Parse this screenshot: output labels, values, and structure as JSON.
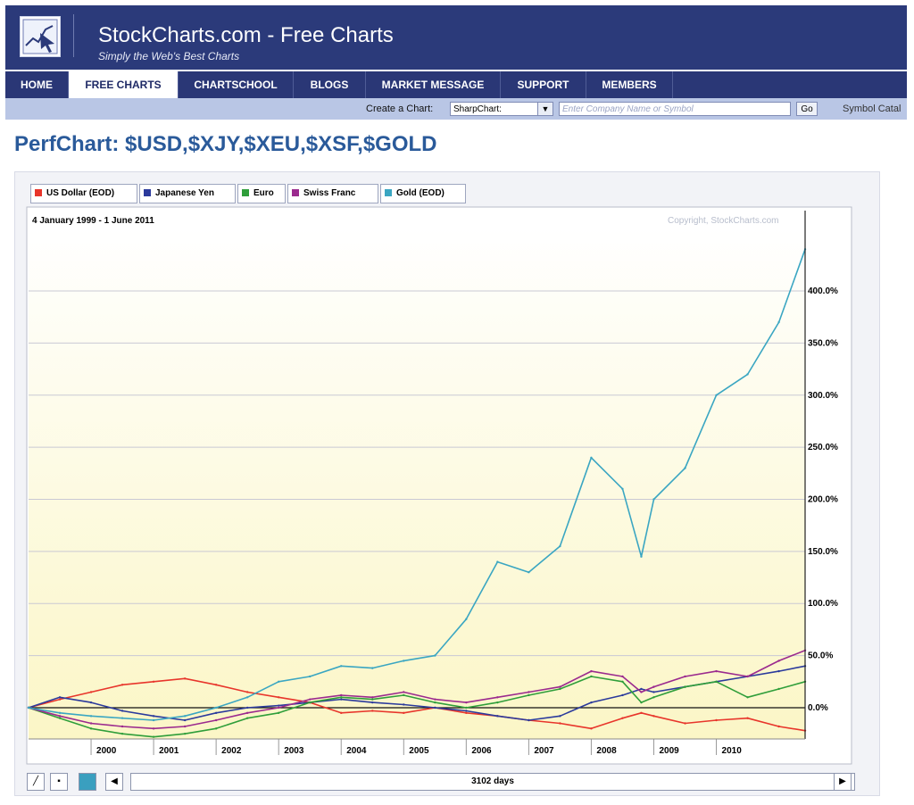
{
  "header": {
    "title": "StockCharts.com - Free Charts",
    "tagline": "Simply the Web's Best Charts"
  },
  "nav": {
    "items": [
      {
        "label": "HOME"
      },
      {
        "label": "FREE CHARTS",
        "active": true
      },
      {
        "label": "CHARTSCHOOL"
      },
      {
        "label": "BLOGS"
      },
      {
        "label": "MARKET MESSAGE"
      },
      {
        "label": "SUPPORT"
      },
      {
        "label": "MEMBERS"
      }
    ]
  },
  "create_chart": {
    "label": "Create a Chart:",
    "select_value": "SharpChart:",
    "input_placeholder": "Enter Company Name or Symbol",
    "go_label": "Go",
    "catalog_label": "Symbol Catal"
  },
  "page": {
    "title": "PerfChart: $USD,$XJY,$XEU,$XSF,$GOLD"
  },
  "legend": [
    {
      "label": "US Dollar (EOD)",
      "color": "#e8352b"
    },
    {
      "label": "Japanese Yen",
      "color": "#2b3a9c"
    },
    {
      "label": "Euro",
      "color": "#2f9e3a"
    },
    {
      "label": "Swiss Franc",
      "color": "#9b2a8e"
    },
    {
      "label": "Gold (EOD)",
      "color": "#3aa6c2"
    }
  ],
  "chart_data": {
    "type": "line",
    "date_range": "4 January 1999 - 1 June 2011",
    "copyright": "Copyright, StockCharts.com",
    "x": [
      1999.0,
      1999.5,
      2000.0,
      2000.5,
      2001.0,
      2001.5,
      2002.0,
      2002.5,
      2003.0,
      2003.5,
      2004.0,
      2004.5,
      2005.0,
      2005.5,
      2006.0,
      2006.5,
      2007.0,
      2007.5,
      2008.0,
      2008.5,
      2008.8,
      2009.0,
      2009.5,
      2010.0,
      2010.5,
      2011.0,
      2011.42
    ],
    "x_ticks": [
      "2000",
      "2001",
      "2002",
      "2003",
      "2004",
      "2005",
      "2006",
      "2007",
      "2008",
      "2009",
      "2010"
    ],
    "y_ticks": [
      "0.0%",
      "50.0%",
      "100.0%",
      "150.0%",
      "200.0%",
      "250.0%",
      "300.0%",
      "350.0%",
      "400.0%"
    ],
    "ylim": [
      -30,
      460
    ],
    "series": [
      {
        "name": "US Dollar (EOD)",
        "color": "#e8352b",
        "values": [
          0,
          8,
          15,
          22,
          25,
          28,
          22,
          15,
          10,
          5,
          -5,
          -3,
          -5,
          0,
          -5,
          -8,
          -12,
          -15,
          -20,
          -10,
          -5,
          -8,
          -15,
          -12,
          -10,
          -18,
          -22
        ]
      },
      {
        "name": "Japanese Yen",
        "color": "#2b3a9c",
        "values": [
          0,
          10,
          5,
          -3,
          -8,
          -12,
          -5,
          0,
          2,
          5,
          8,
          5,
          3,
          0,
          -3,
          -8,
          -12,
          -8,
          5,
          12,
          18,
          15,
          20,
          25,
          30,
          35,
          40
        ]
      },
      {
        "name": "Euro",
        "color": "#2f9e3a",
        "values": [
          0,
          -10,
          -20,
          -25,
          -28,
          -25,
          -20,
          -10,
          -5,
          5,
          10,
          8,
          12,
          5,
          0,
          5,
          12,
          18,
          30,
          25,
          5,
          10,
          20,
          25,
          10,
          18,
          25
        ]
      },
      {
        "name": "Swiss Franc",
        "color": "#9b2a8e",
        "values": [
          0,
          -8,
          -15,
          -18,
          -20,
          -18,
          -12,
          -5,
          0,
          8,
          12,
          10,
          15,
          8,
          5,
          10,
          15,
          20,
          35,
          30,
          15,
          20,
          30,
          35,
          30,
          45,
          55
        ]
      },
      {
        "name": "Gold (EOD)",
        "color": "#3aa6c2",
        "values": [
          0,
          -5,
          -8,
          -10,
          -12,
          -8,
          0,
          10,
          25,
          30,
          40,
          38,
          45,
          50,
          85,
          140,
          130,
          155,
          240,
          210,
          145,
          200,
          230,
          300,
          320,
          370,
          440
        ]
      }
    ]
  },
  "scrollbar": {
    "days_label": "3102 days"
  }
}
